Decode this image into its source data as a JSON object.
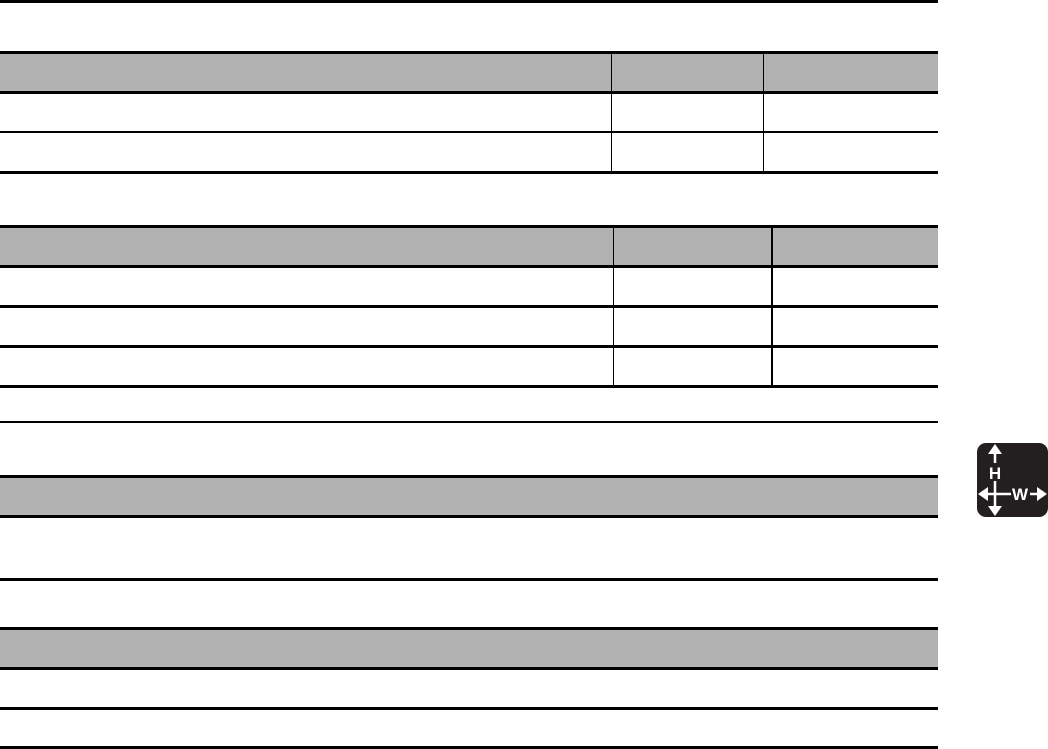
{
  "icon": {
    "name": "height-width-dimensions-icon",
    "h_label": "H",
    "w_label": "W",
    "color": "#231f20"
  },
  "tables": [
    {
      "columns": 3,
      "rows": 2
    },
    {
      "columns": 3,
      "rows": 3
    },
    {
      "columns": 1,
      "rows": 1
    },
    {
      "columns": 1,
      "rows": 2
    }
  ],
  "header_fill": "#b2b2b2"
}
